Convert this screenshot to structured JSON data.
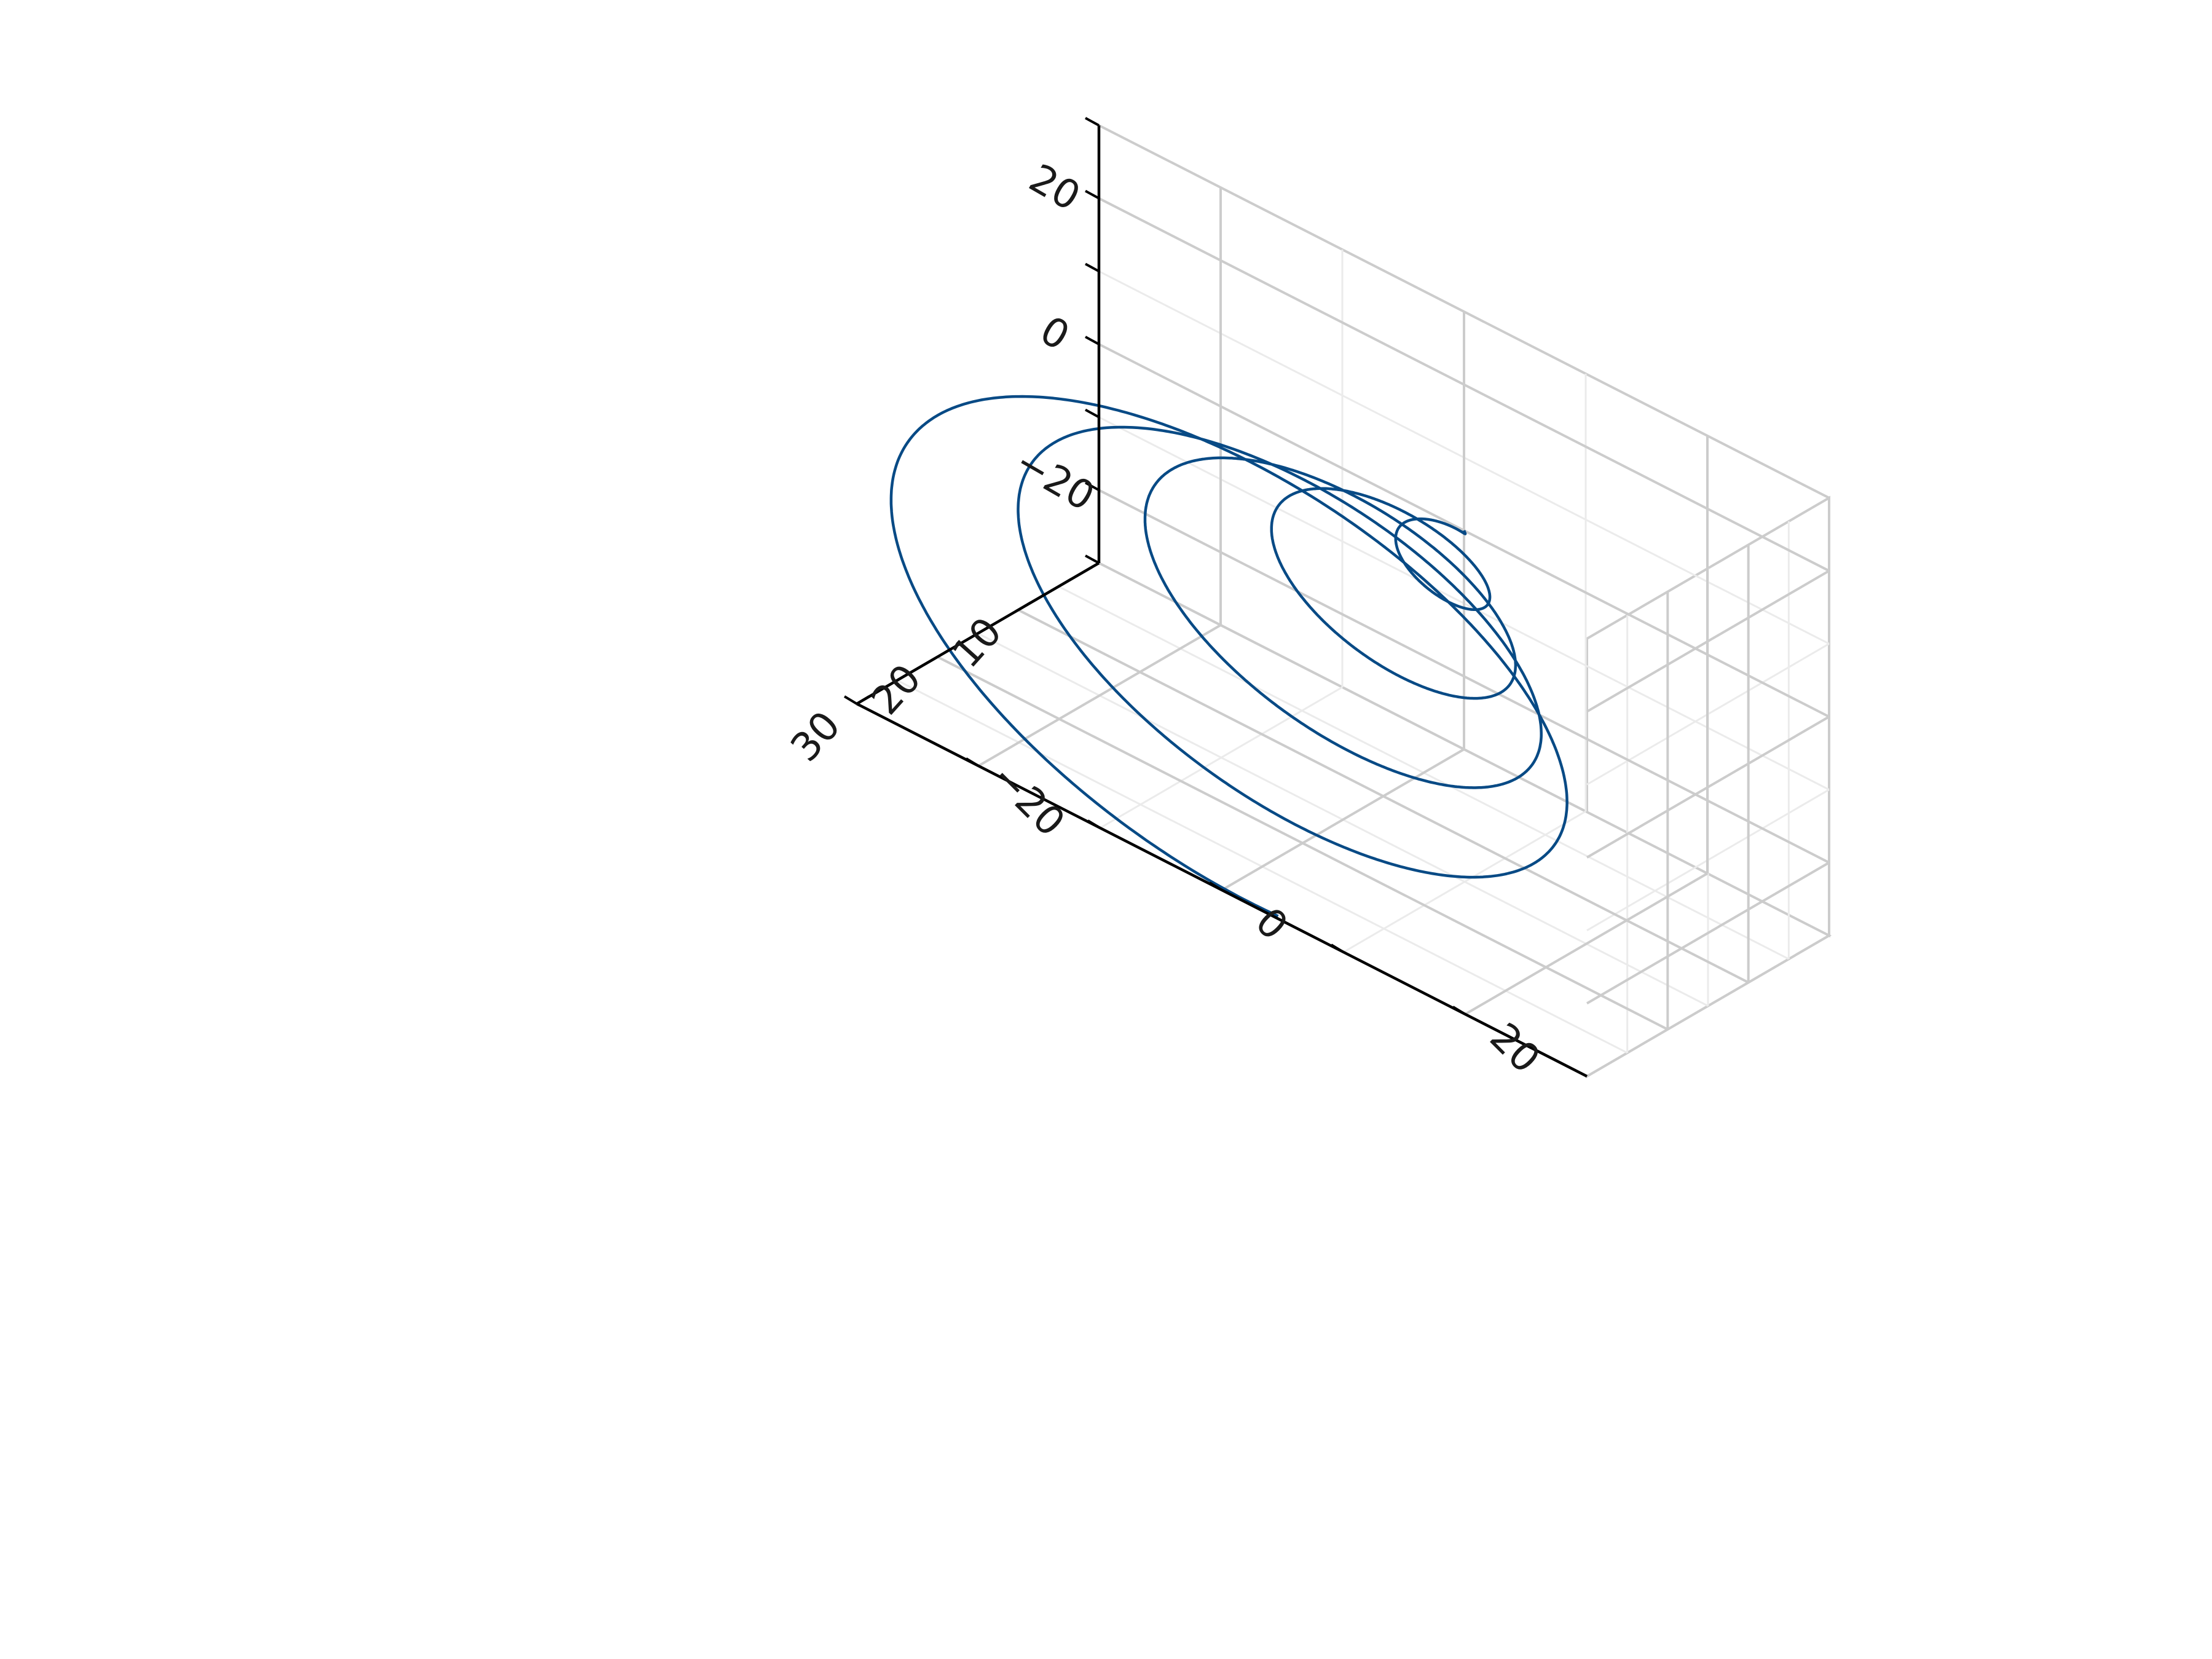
{
  "chart_data": {
    "type": "line",
    "projection": "3d",
    "title": "",
    "xlabel": "",
    "ylabel": "",
    "zlabel": "",
    "xlim": [
      0,
      30
    ],
    "ylim": [
      -30,
      30
    ],
    "zlim": [
      -30,
      30
    ],
    "x_ticks": [
      "10",
      "20",
      "30"
    ],
    "y_ticks": [
      "−20",
      "0",
      "20"
    ],
    "z_ticks": [
      "−20",
      "0",
      "20"
    ],
    "grid": true,
    "colors": {
      "line": "#084a85",
      "grid": "#cccccc",
      "axis": "#000000"
    },
    "series": [
      {
        "description": "conical helix: x = t, y = t·cos(t), z = t·sin(t), t from 0 to 30",
        "x": [
          0.0,
          1.5,
          3.0,
          4.5,
          6.0,
          7.5,
          9.0,
          10.5,
          12.0,
          13.5,
          15.0,
          16.5,
          18.0,
          19.5,
          21.0,
          22.5,
          24.0,
          25.5,
          27.0,
          28.5,
          30.0
        ],
        "y": [
          0.0,
          0.11,
          -2.97,
          -0.95,
          5.76,
          2.6,
          -8.2,
          -4.76,
          10.13,
          7.36,
          -11.39,
          -10.3,
          11.87,
          13.47,
          -11.51,
          -16.79,
          10.17,
          20.05,
          -7.8,
          -23.11,
          4.63
        ],
        "z": [
          0.0,
          1.5,
          0.42,
          -4.4,
          -1.68,
          7.04,
          3.71,
          -9.35,
          -6.44,
          10.95,
          9.75,
          -11.68,
          -13.52,
          11.44,
          17.58,
          -10.14,
          -21.74,
          7.75,
          25.85,
          -4.21,
          -29.64
        ]
      }
    ]
  }
}
